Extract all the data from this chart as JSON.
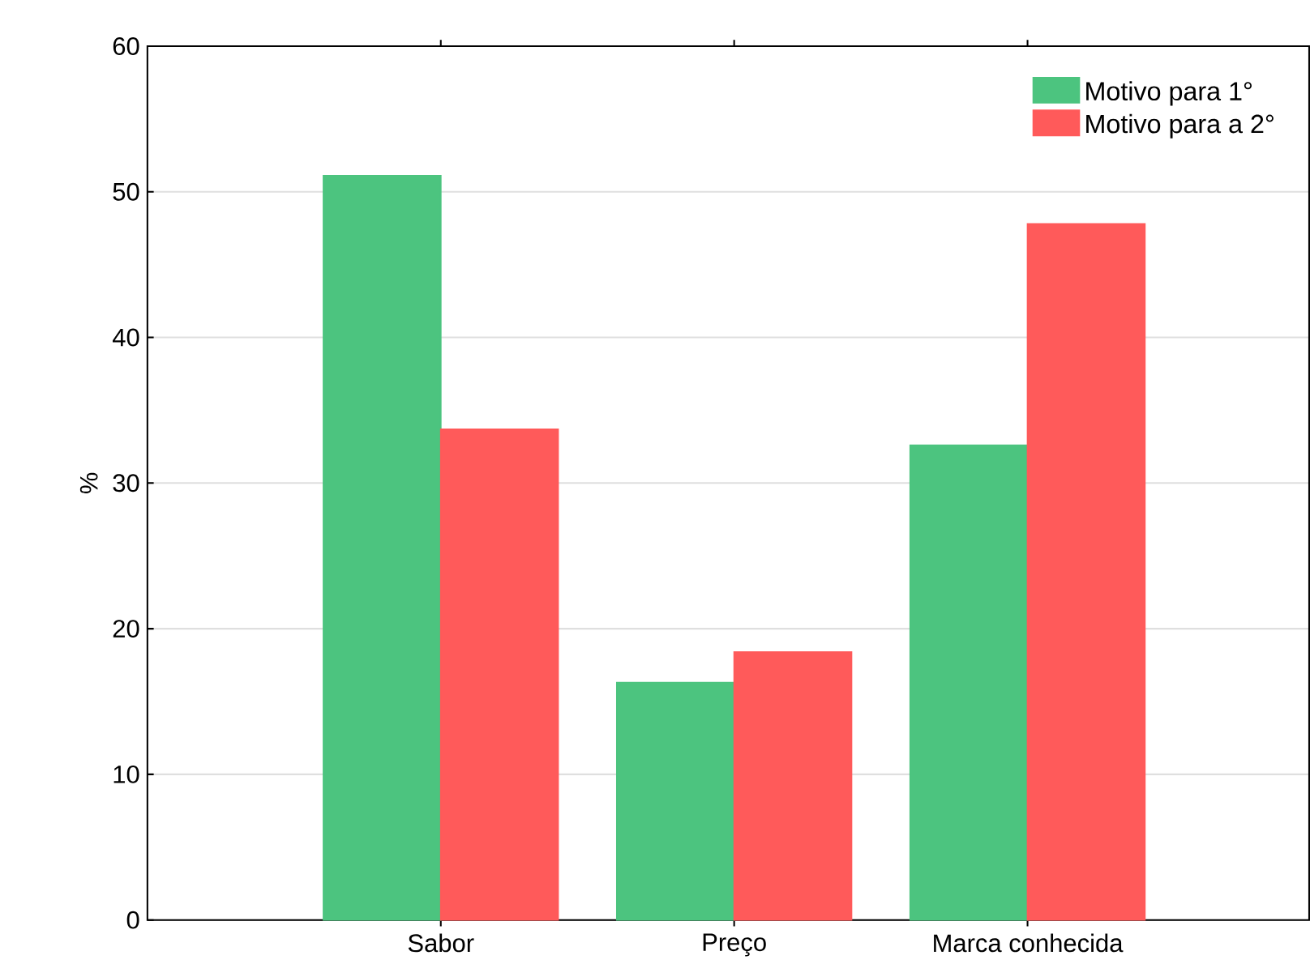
{
  "chart_data": {
    "type": "bar",
    "ylabel": "%",
    "categories": [
      "Sabor",
      "Preço",
      "Marca conhecida"
    ],
    "series": [
      {
        "name": "Motivo para 1°",
        "color": "#4cc47f",
        "values": [
          51.1,
          16.3,
          32.6
        ]
      },
      {
        "name": "Motivo para a 2°",
        "color": "#ff5a5a",
        "values": [
          33.7,
          18.4,
          47.8
        ]
      }
    ],
    "ylim": [
      0,
      60
    ],
    "yticks": [
      0,
      10,
      20,
      30,
      40,
      50,
      60
    ],
    "grid": "y",
    "legend": "top right"
  }
}
